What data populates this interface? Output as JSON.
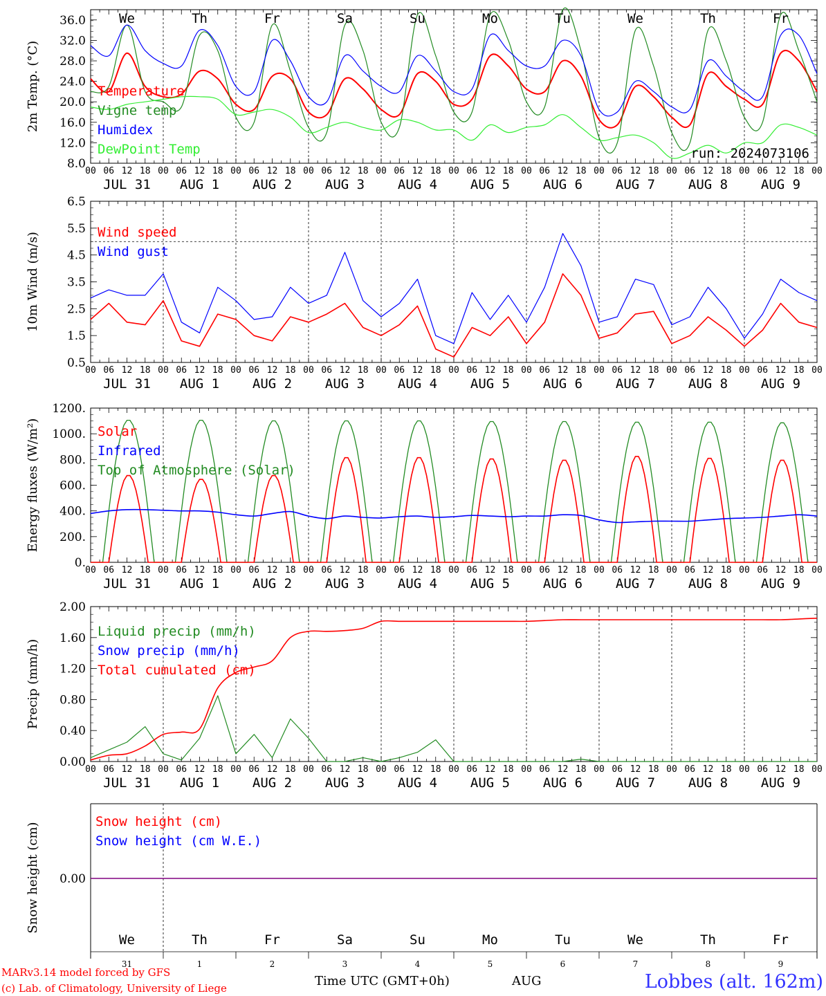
{
  "colors": {
    "red": "#ff0000",
    "darkgreen": "#228b22",
    "blue": "#0000ff",
    "lightgreen": "#33ee33",
    "purple": "#800080",
    "black": "#000000"
  },
  "days": [
    {
      "abbr": "We",
      "color": "#000000",
      "month": "JUL",
      "num": "31",
      "date_label": "JUL 31"
    },
    {
      "abbr": "Th",
      "color": "#000000",
      "month": "AUG",
      "num": "1",
      "date_label": "AUG  1"
    },
    {
      "abbr": "Fr",
      "color": "#000000",
      "month": "AUG",
      "num": "2",
      "date_label": "AUG  2"
    },
    {
      "abbr": "Sa",
      "color": "#ff0000",
      "month": "AUG",
      "num": "3",
      "date_label": "AUG  3"
    },
    {
      "abbr": "Su",
      "color": "#ff0000",
      "month": "AUG",
      "num": "4",
      "date_label": "AUG  4"
    },
    {
      "abbr": "Mo",
      "color": "#000000",
      "month": "AUG",
      "num": "5",
      "date_label": "AUG  5"
    },
    {
      "abbr": "Tu",
      "color": "#000000",
      "month": "AUG",
      "num": "6",
      "date_label": "AUG  6"
    },
    {
      "abbr": "We",
      "color": "#000000",
      "month": "AUG",
      "num": "7",
      "date_label": "AUG  7"
    },
    {
      "abbr": "Th",
      "color": "#000000",
      "month": "AUG",
      "num": "8",
      "date_label": "AUG  8"
    },
    {
      "abbr": "Fr",
      "color": "#000000",
      "month": "AUG",
      "num": "9",
      "date_label": "AUG  9"
    }
  ],
  "hour_ticks": [
    "00",
    "06",
    "12",
    "18"
  ],
  "last_tick": "00",
  "footer": {
    "credit1": "MARv3.14 model forced by GFS",
    "credit2": "(c) Lab. of Climatology, University of Liege",
    "xlabel": "Time UTC (GMT+0h)",
    "month": "AUG",
    "station": "Lobbes (alt. 162m)"
  },
  "chart_data": [
    {
      "type": "line",
      "name": "temperature",
      "ylabel": "2m Temp. (°C)",
      "ylim": [
        8.0,
        38.0
      ],
      "yticks": [
        "8.0",
        "12.0",
        "16.0",
        "20.0",
        "24.0",
        "28.0",
        "32.0",
        "36.0"
      ],
      "annotation": "run: 2024073106",
      "legend": [
        {
          "label": "Temperature",
          "color": "#ff0000"
        },
        {
          "label": "Vigne temp",
          "color": "#228b22"
        },
        {
          "label": "Humidex",
          "color": "#0000ff"
        },
        {
          "label": "DewPoint Temp",
          "color": "#33ee33"
        }
      ],
      "x_step_hours": 6,
      "series": [
        {
          "key": "temp",
          "color": "#ff0000",
          "width": 2,
          "values": [
            24.5,
            22,
            29.5,
            23,
            21,
            21.5,
            26,
            24.5,
            19.5,
            18.5,
            25,
            24.5,
            18,
            17.5,
            24.5,
            22.5,
            18.5,
            17.5,
            25.5,
            24,
            19.5,
            20.5,
            29,
            27,
            22.5,
            22,
            28,
            25,
            16.5,
            15.5,
            23,
            21,
            17,
            15.5,
            25.5,
            23,
            20.5,
            19.5,
            29.5,
            28,
            22
          ]
        },
        {
          "key": "vigne",
          "color": "#228b22",
          "width": 1.2,
          "values": [
            22,
            23,
            35,
            22,
            20,
            19,
            33,
            30,
            17,
            16,
            35,
            26,
            15,
            14,
            35,
            30,
            16,
            15,
            37,
            29,
            18,
            18,
            37,
            32,
            20,
            19,
            38,
            30,
            13,
            12,
            34,
            27,
            14,
            12,
            34,
            28,
            17,
            16,
            37,
            30,
            20
          ]
        },
        {
          "key": "humidex",
          "color": "#0000ff",
          "width": 1.2,
          "values": [
            31,
            29,
            35,
            30,
            27.5,
            27,
            34,
            31,
            23,
            22,
            32,
            28,
            21,
            20,
            29,
            26,
            23,
            22,
            29,
            26,
            22,
            22.5,
            33,
            30,
            27,
            27,
            32,
            29,
            18.5,
            18,
            24,
            22,
            19,
            18.5,
            28,
            25,
            22,
            21,
            33,
            33,
            25.5
          ]
        },
        {
          "key": "dewpoint",
          "color": "#33ee33",
          "width": 1.2,
          "values": [
            19,
            18.5,
            19.5,
            20,
            20.5,
            21,
            21,
            20.5,
            17.5,
            18,
            18.5,
            17,
            14,
            15,
            16,
            15,
            14.5,
            16.5,
            16,
            14.5,
            14.5,
            12.5,
            15.5,
            14,
            15,
            15.5,
            17.5,
            15,
            12.5,
            13,
            13.5,
            12,
            9,
            10,
            11.5,
            10,
            12,
            12,
            15.5,
            15,
            13.5
          ]
        }
      ]
    },
    {
      "type": "line",
      "name": "wind",
      "ylabel": "10m Wind (m/s)",
      "ylim": [
        0.5,
        6.5
      ],
      "yticks": [
        "0.5",
        "1.5",
        "2.5",
        "3.5",
        "4.5",
        "5.5",
        "6.5"
      ],
      "reference_line": 5.0,
      "legend": [
        {
          "label": "Wind speed",
          "color": "#ff0000"
        },
        {
          "label": "Wind gust",
          "color": "#0000ff"
        }
      ],
      "x_step_hours": 6,
      "series": [
        {
          "key": "speed",
          "color": "#ff0000",
          "width": 1.6,
          "values": [
            2.1,
            2.7,
            2.0,
            1.9,
            2.8,
            1.3,
            1.1,
            2.3,
            2.1,
            1.5,
            1.3,
            2.2,
            2.0,
            2.3,
            2.7,
            1.8,
            1.5,
            1.9,
            2.6,
            1.0,
            0.7,
            1.8,
            1.5,
            2.2,
            1.2,
            2.0,
            3.8,
            3.0,
            1.4,
            1.6,
            2.3,
            2.4,
            1.2,
            1.5,
            2.2,
            1.7,
            1.1,
            1.7,
            2.7,
            2.0,
            1.8
          ]
        },
        {
          "key": "gust",
          "color": "#0000ff",
          "width": 1.2,
          "values": [
            2.9,
            3.2,
            3.0,
            3.0,
            3.8,
            2.0,
            1.6,
            3.3,
            2.8,
            2.1,
            2.2,
            3.3,
            2.7,
            3.0,
            4.6,
            2.8,
            2.2,
            2.7,
            3.6,
            1.5,
            1.2,
            3.1,
            2.1,
            3.0,
            2.0,
            3.3,
            5.3,
            4.1,
            2.0,
            2.2,
            3.6,
            3.4,
            1.9,
            2.2,
            3.3,
            2.5,
            1.4,
            2.3,
            3.6,
            3.1,
            2.8
          ]
        }
      ]
    },
    {
      "type": "line",
      "name": "energy",
      "ylabel": "Energy fluxes (W/m²)",
      "ylim": [
        0,
        1200
      ],
      "yticks": [
        "0.",
        "200.",
        "400.",
        "600.",
        "800.",
        "1000.",
        "1200."
      ],
      "legend": [
        {
          "label": "Solar",
          "color": "#ff0000"
        },
        {
          "label": "Infrared",
          "color": "#0000ff"
        },
        {
          "label": "Top of Atmosphere (Solar)",
          "color": "#228b22"
        }
      ],
      "daily_peak_toa": [
        1110,
        1110,
        1105,
        1105,
        1105,
        1100,
        1100,
        1095,
        1095,
        1090
      ],
      "daily_peak_solar": [
        680,
        650,
        680,
        820,
        820,
        810,
        800,
        830,
        815,
        800
      ],
      "infrared": [
        380,
        400,
        410,
        410,
        405,
        400,
        400,
        390,
        370,
        360,
        380,
        395,
        360,
        340,
        360,
        350,
        345,
        355,
        360,
        350,
        355,
        365,
        360,
        355,
        360,
        360,
        370,
        365,
        330,
        310,
        315,
        320,
        320,
        320,
        330,
        340,
        345,
        350,
        360,
        370,
        360
      ],
      "x_step_hours": 6
    },
    {
      "type": "line",
      "name": "precip",
      "ylabel": "Precip (mm/h)",
      "ylim": [
        0.0,
        2.0
      ],
      "yticks": [
        "0.00",
        "0.40",
        "0.80",
        "1.20",
        "1.60",
        "2.00"
      ],
      "legend": [
        {
          "label": "Liquid precip (mm/h)",
          "color": "#228b22"
        },
        {
          "label": "Snow precip (mm/h)",
          "color": "#0000ff"
        },
        {
          "label": "Total cumulated (cm)",
          "color": "#ff0000"
        }
      ],
      "x_step_hours": 6,
      "series": [
        {
          "key": "liquid",
          "color": "#228b22",
          "width": 1.2,
          "values": [
            0.05,
            0.15,
            0.25,
            0.45,
            0.1,
            0.02,
            0.3,
            0.85,
            0.1,
            0.35,
            0.05,
            0.55,
            0.3,
            0.0,
            0.0,
            0.05,
            0.0,
            0.05,
            0.12,
            0.28,
            0.0,
            0.0,
            0.0,
            0.0,
            0.0,
            0.0,
            0.0,
            0.03,
            0.0,
            0.0,
            0.0,
            0.0,
            0.0,
            0.0,
            0.0,
            0.0,
            0.0,
            0.0,
            0.0,
            0.0,
            0.0
          ]
        },
        {
          "key": "cumulated",
          "color": "#ff0000",
          "width": 1.6,
          "values": [
            0.02,
            0.08,
            0.1,
            0.2,
            0.35,
            0.38,
            0.42,
            0.95,
            1.15,
            1.22,
            1.3,
            1.6,
            1.68,
            1.68,
            1.69,
            1.72,
            1.81,
            1.81,
            1.81,
            1.81,
            1.81,
            1.81,
            1.81,
            1.81,
            1.81,
            1.82,
            1.83,
            1.83,
            1.83,
            1.83,
            1.83,
            1.83,
            1.83,
            1.83,
            1.83,
            1.83,
            1.83,
            1.83,
            1.83,
            1.84,
            1.85
          ]
        }
      ]
    },
    {
      "type": "line",
      "name": "snow",
      "ylabel": "Snow height (cm)",
      "ylim": [
        -1,
        1
      ],
      "yticks": [
        "0.00"
      ],
      "legend": [
        {
          "label": "Snow height (cm)",
          "color": "#ff0000"
        },
        {
          "label": "Snow height (cm W.E.)",
          "color": "#0000ff"
        }
      ],
      "values": [
        0,
        0
      ]
    }
  ]
}
